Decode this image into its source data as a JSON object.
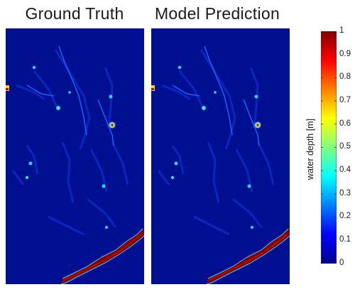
{
  "panels": {
    "left_title": "Ground Truth",
    "right_title": "Model Prediction"
  },
  "colorbar": {
    "label": "water depth [m]",
    "ticks": [
      "1",
      "0.9",
      "0.8",
      "0.7",
      "0.6",
      "0.5",
      "0.4",
      "0.3",
      "0.2",
      "0.1",
      "0"
    ],
    "colormap": "jet",
    "min": 0,
    "max": 1
  },
  "colors": {
    "background_low": "#000f8f",
    "channel_blue": "#1e5cff",
    "cyan": "#2fd6ff",
    "yellow": "#ffd800",
    "red": "#c00000",
    "dark_red": "#800000"
  }
}
